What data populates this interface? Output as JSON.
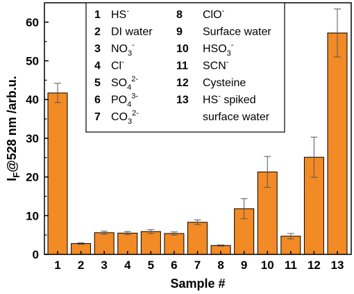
{
  "chart_data": {
    "type": "bar",
    "categories": [
      "1",
      "2",
      "3",
      "4",
      "5",
      "6",
      "7",
      "8",
      "9",
      "10",
      "11",
      "12",
      "13"
    ],
    "values": [
      41.7,
      2.8,
      5.6,
      5.5,
      5.9,
      5.4,
      8.3,
      2.3,
      11.8,
      21.3,
      4.7,
      25.1,
      57.2
    ],
    "errors": [
      2.5,
      0.2,
      0.4,
      0.4,
      0.5,
      0.4,
      0.6,
      0.15,
      2.6,
      4.0,
      0.7,
      5.2,
      6.2
    ],
    "xlabel": "Sample #",
    "ylabel_main": "I",
    "ylabel_sub": "F",
    "ylabel_rest": "@528 nm /arb.u.",
    "ylim": [
      0,
      65
    ],
    "yticks": [
      0,
      10,
      20,
      30,
      40,
      50,
      60
    ],
    "bar_color": "#f28a25",
    "legend_placement": "top-center",
    "legend": {
      "left": [
        {
          "num": "1",
          "parts": [
            {
              "t": "HS"
            },
            {
              "t": "-",
              "sup": true
            }
          ]
        },
        {
          "num": "2",
          "parts": [
            {
              "t": "DI water"
            }
          ]
        },
        {
          "num": "3",
          "parts": [
            {
              "t": "NO"
            },
            {
              "t": "3",
              "sub": true
            },
            {
              "t": "-",
              "sup": true
            }
          ]
        },
        {
          "num": "4",
          "parts": [
            {
              "t": "Cl"
            },
            {
              "t": "-",
              "sup": true
            }
          ]
        },
        {
          "num": "5",
          "parts": [
            {
              "t": "SO"
            },
            {
              "t": "4",
              "sub": true
            },
            {
              "t": "2-",
              "sup": true
            }
          ]
        },
        {
          "num": "6",
          "parts": [
            {
              "t": "PO"
            },
            {
              "t": "4",
              "sub": true
            },
            {
              "t": "3-",
              "sup": true
            }
          ]
        },
        {
          "num": "7",
          "parts": [
            {
              "t": "CO"
            },
            {
              "t": "3",
              "sub": true
            },
            {
              "t": "2-",
              "sup": true
            }
          ]
        }
      ],
      "right": [
        {
          "num": "8",
          "parts": [
            {
              "t": "ClO"
            },
            {
              "t": "-",
              "sup": true
            }
          ]
        },
        {
          "num": "9",
          "parts": [
            {
              "t": "Surface water"
            }
          ]
        },
        {
          "num": "10",
          "parts": [
            {
              "t": "HSO"
            },
            {
              "t": "3",
              "sub": true
            },
            {
              "t": "-",
              "sup": true
            }
          ]
        },
        {
          "num": "11",
          "parts": [
            {
              "t": "SCN"
            },
            {
              "t": "-",
              "sup": true
            }
          ]
        },
        {
          "num": "12",
          "parts": [
            {
              "t": "Cysteine"
            }
          ]
        },
        {
          "num": "13",
          "parts": [
            {
              "t": "HS"
            },
            {
              "t": "-",
              "sup": true
            },
            {
              "t": " spiked"
            }
          ]
        },
        {
          "num": "",
          "parts": [
            {
              "t": "surface water"
            }
          ]
        }
      ]
    }
  }
}
